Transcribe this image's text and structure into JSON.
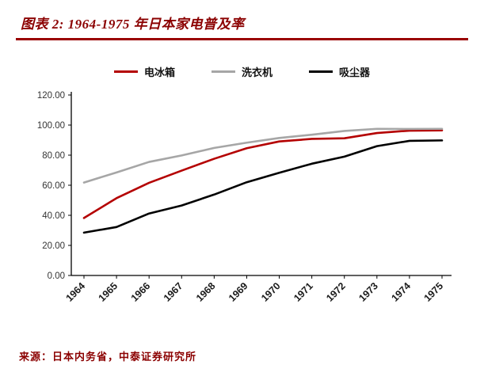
{
  "header": {
    "title": "图表 2:  1964-1975 年日本家电普及率"
  },
  "footer": {
    "source": "来源：日本内务省，中泰证券研究所"
  },
  "colors": {
    "accent": "#8B0000",
    "axis": "#000000"
  },
  "chart_data": {
    "type": "line",
    "title": "1964-1975 年日本家电普及率",
    "x": [
      1964,
      1965,
      1966,
      1967,
      1968,
      1969,
      1970,
      1971,
      1972,
      1973,
      1974,
      1975
    ],
    "series": [
      {
        "name": "电冰箱",
        "color": "#b40000",
        "values": [
          38.2,
          51.4,
          61.6,
          69.7,
          77.6,
          84.6,
          89.1,
          90.8,
          91.2,
          94.7,
          96.3,
          96.5
        ]
      },
      {
        "name": "洗衣机",
        "color": "#a6a6a6",
        "values": [
          61.8,
          68.5,
          75.5,
          79.8,
          84.8,
          88.3,
          91.4,
          93.6,
          96.1,
          97.5,
          97.4,
          97.5
        ]
      },
      {
        "name": "吸尘器",
        "color": "#000000",
        "values": [
          28.5,
          32.2,
          41.2,
          46.5,
          53.8,
          62.0,
          68.3,
          74.3,
          79.0,
          86.0,
          89.5,
          89.8
        ]
      }
    ],
    "ylim": [
      0,
      120
    ],
    "ytick_step": 20,
    "ytick_format_decimals": 2,
    "legend_position": "top",
    "grid": false
  }
}
